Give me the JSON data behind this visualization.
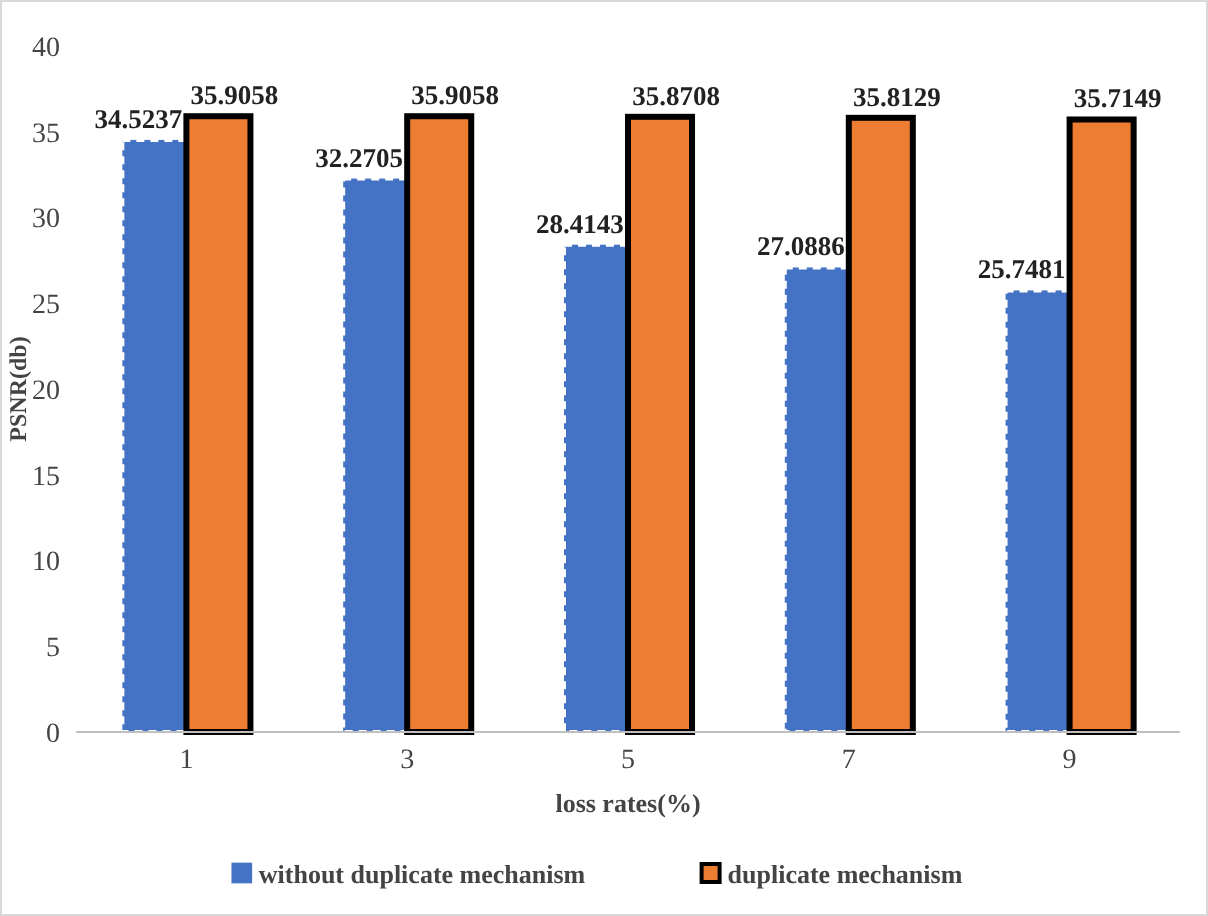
{
  "chart_data": {
    "type": "bar",
    "xlabel": "loss rates(%)",
    "ylabel": "PSNR(db)",
    "categories": [
      "1",
      "3",
      "5",
      "7",
      "9"
    ],
    "series": [
      {
        "name": "without duplicate mechanism",
        "color": "#4472c4",
        "values": [
          34.5237,
          32.2705,
          28.4143,
          27.0886,
          25.7481
        ]
      },
      {
        "name": "duplicate mechanism",
        "color": "#ed7d31",
        "values": [
          35.9058,
          35.9058,
          35.8708,
          35.8129,
          35.7149
        ]
      }
    ],
    "ylim": [
      0,
      40
    ],
    "yticks": [
      0,
      5,
      10,
      15,
      20,
      25,
      30,
      35,
      40
    ],
    "data_labels": true,
    "grid": false,
    "legend": "bottom"
  }
}
